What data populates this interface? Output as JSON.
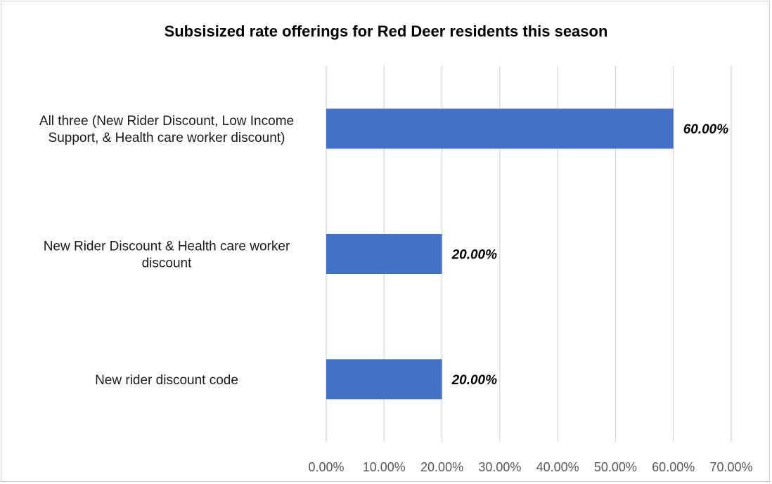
{
  "chart_data": {
    "type": "bar",
    "orientation": "horizontal",
    "title": "Subsisized rate offerings for Red Deer residents this season",
    "categories": [
      [
        "All three (New Rider Discount, Low Income",
        "Support, & Health care worker discount)"
      ],
      [
        "New Rider Discount & Health care worker",
        "discount"
      ],
      [
        "New rider discount code"
      ]
    ],
    "values": [
      60,
      20,
      20
    ],
    "data_labels": [
      "60.00%",
      "20.00%",
      "20.00%"
    ],
    "xlim": [
      0,
      70
    ],
    "x_ticks": [
      0,
      10,
      20,
      30,
      40,
      50,
      60,
      70
    ],
    "x_tick_labels": [
      "0.00%",
      "10.00%",
      "20.00%",
      "30.00%",
      "40.00%",
      "50.00%",
      "60.00%",
      "70.00%"
    ],
    "grid": "vertical",
    "legend": "none",
    "bar_color": "#4472c4"
  }
}
